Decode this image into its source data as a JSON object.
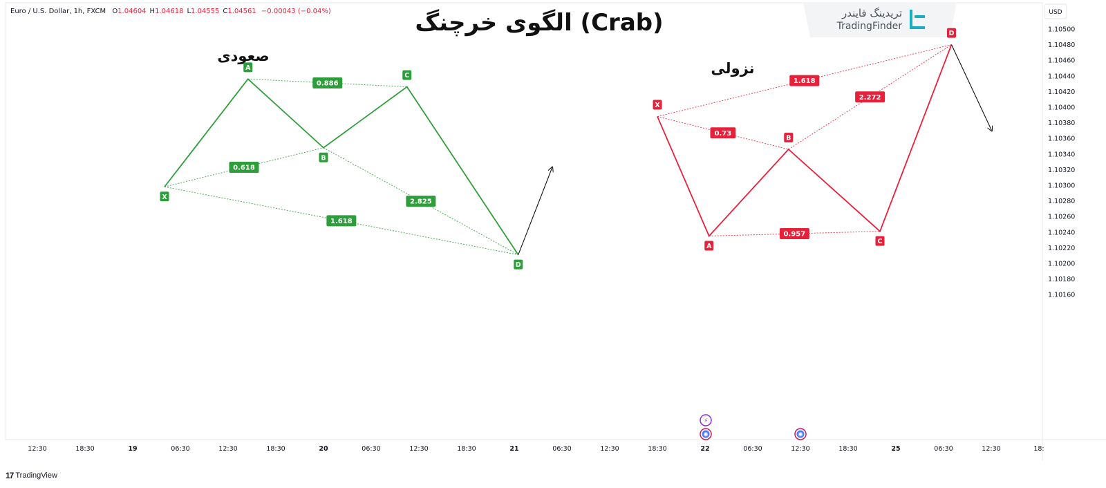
{
  "header": {
    "symbol": "Euro / U.S. Dollar, 1h, FXCM",
    "ohlc": [
      {
        "key": "O",
        "value": "1.04604"
      },
      {
        "key": "H",
        "value": "1.04618"
      },
      {
        "key": "L",
        "value": "1.04555"
      },
      {
        "key": "C",
        "value": "1.04561"
      }
    ],
    "change": "−0.00043 (−0.04%)"
  },
  "title": "الگوی خرچنگ (Crab)",
  "brand": {
    "name_fa": "تریدینگ فایندر",
    "name_en": "TradingFinder"
  },
  "currency_button": "USD",
  "price_axis": [
    "1.10500",
    "1.10480",
    "1.10460",
    "1.10440",
    "1.10420",
    "1.10400",
    "1.10380",
    "1.10360",
    "1.10340",
    "1.10320",
    "1.10300",
    "1.10280",
    "1.10260",
    "1.10240",
    "1.10220",
    "1.10200",
    "1.10180",
    "1.10160"
  ],
  "time_axis": [
    {
      "label": "12:30",
      "bold": false
    },
    {
      "label": "18:30",
      "bold": false
    },
    {
      "label": "19",
      "bold": true
    },
    {
      "label": "06:30",
      "bold": false
    },
    {
      "label": "12:30",
      "bold": false
    },
    {
      "label": "18:30",
      "bold": false
    },
    {
      "label": "20",
      "bold": true
    },
    {
      "label": "06:30",
      "bold": false
    },
    {
      "label": "12:30",
      "bold": false
    },
    {
      "label": "18:30",
      "bold": false
    },
    {
      "label": "21",
      "bold": true
    },
    {
      "label": "06:30",
      "bold": false
    },
    {
      "label": "12:30",
      "bold": false
    },
    {
      "label": "18:30",
      "bold": false
    },
    {
      "label": "22",
      "bold": true
    },
    {
      "label": "06:30",
      "bold": false
    },
    {
      "label": "12:30",
      "bold": false
    },
    {
      "label": "18:30",
      "bold": false
    },
    {
      "label": "25",
      "bold": true
    },
    {
      "label": "06:30",
      "bold": false
    },
    {
      "label": "12:30",
      "bold": false
    },
    {
      "label": "18:",
      "bold": false
    }
  ],
  "bullish": {
    "label": "صعودی",
    "color": "#2e9e3a",
    "points": [
      {
        "name": "X",
        "time": "19 04:00",
        "price": 1.10298
      },
      {
        "name": "A",
        "time": "19 14:30",
        "price": 1.10436
      },
      {
        "name": "B",
        "time": "20 00:00",
        "price": 1.10348
      },
      {
        "name": "C",
        "time": "20 10:30",
        "price": 1.10426
      },
      {
        "name": "D",
        "time": "21 00:30",
        "price": 1.10211
      }
    ],
    "ratios": [
      {
        "value": "0.886",
        "from": "A",
        "to": "C"
      },
      {
        "value": "0.618",
        "from": "X",
        "to": "B"
      },
      {
        "value": "2.825",
        "from": "B",
        "to": "D"
      },
      {
        "value": "1.618",
        "from": "X",
        "to": "D"
      }
    ],
    "arrow": "up"
  },
  "bearish": {
    "label": "نزولی",
    "color": "#e8203a",
    "points": [
      {
        "name": "X",
        "time": "21 18:00",
        "price": 1.10388
      },
      {
        "name": "A",
        "time": "22 00:30",
        "price": 1.10235
      },
      {
        "name": "B",
        "time": "22 10:30",
        "price": 1.10346
      },
      {
        "name": "C",
        "time": "22 22:00",
        "price": 1.10241
      },
      {
        "name": "D",
        "time": "25 07:00",
        "price": 1.1048
      }
    ],
    "ratios": [
      {
        "value": "1.618",
        "from": "X",
        "to": "D"
      },
      {
        "value": "2.272",
        "from": "B",
        "to": "D"
      },
      {
        "value": "0.73",
        "from": "X",
        "to": "B"
      },
      {
        "value": "0.957",
        "from": "A",
        "to": "C"
      }
    ],
    "arrow": "down"
  },
  "event_icons": [
    {
      "name": "lightning-event-icon",
      "symbol": "⚡",
      "color": "#8a2be2"
    },
    {
      "name": "economic-event-icon",
      "symbol": "✺",
      "color": "#c2185b"
    },
    {
      "name": "economic-event-icon-2",
      "symbol": "✺",
      "color": "#c2185b"
    }
  ],
  "footer": {
    "logo": "TradingView"
  }
}
